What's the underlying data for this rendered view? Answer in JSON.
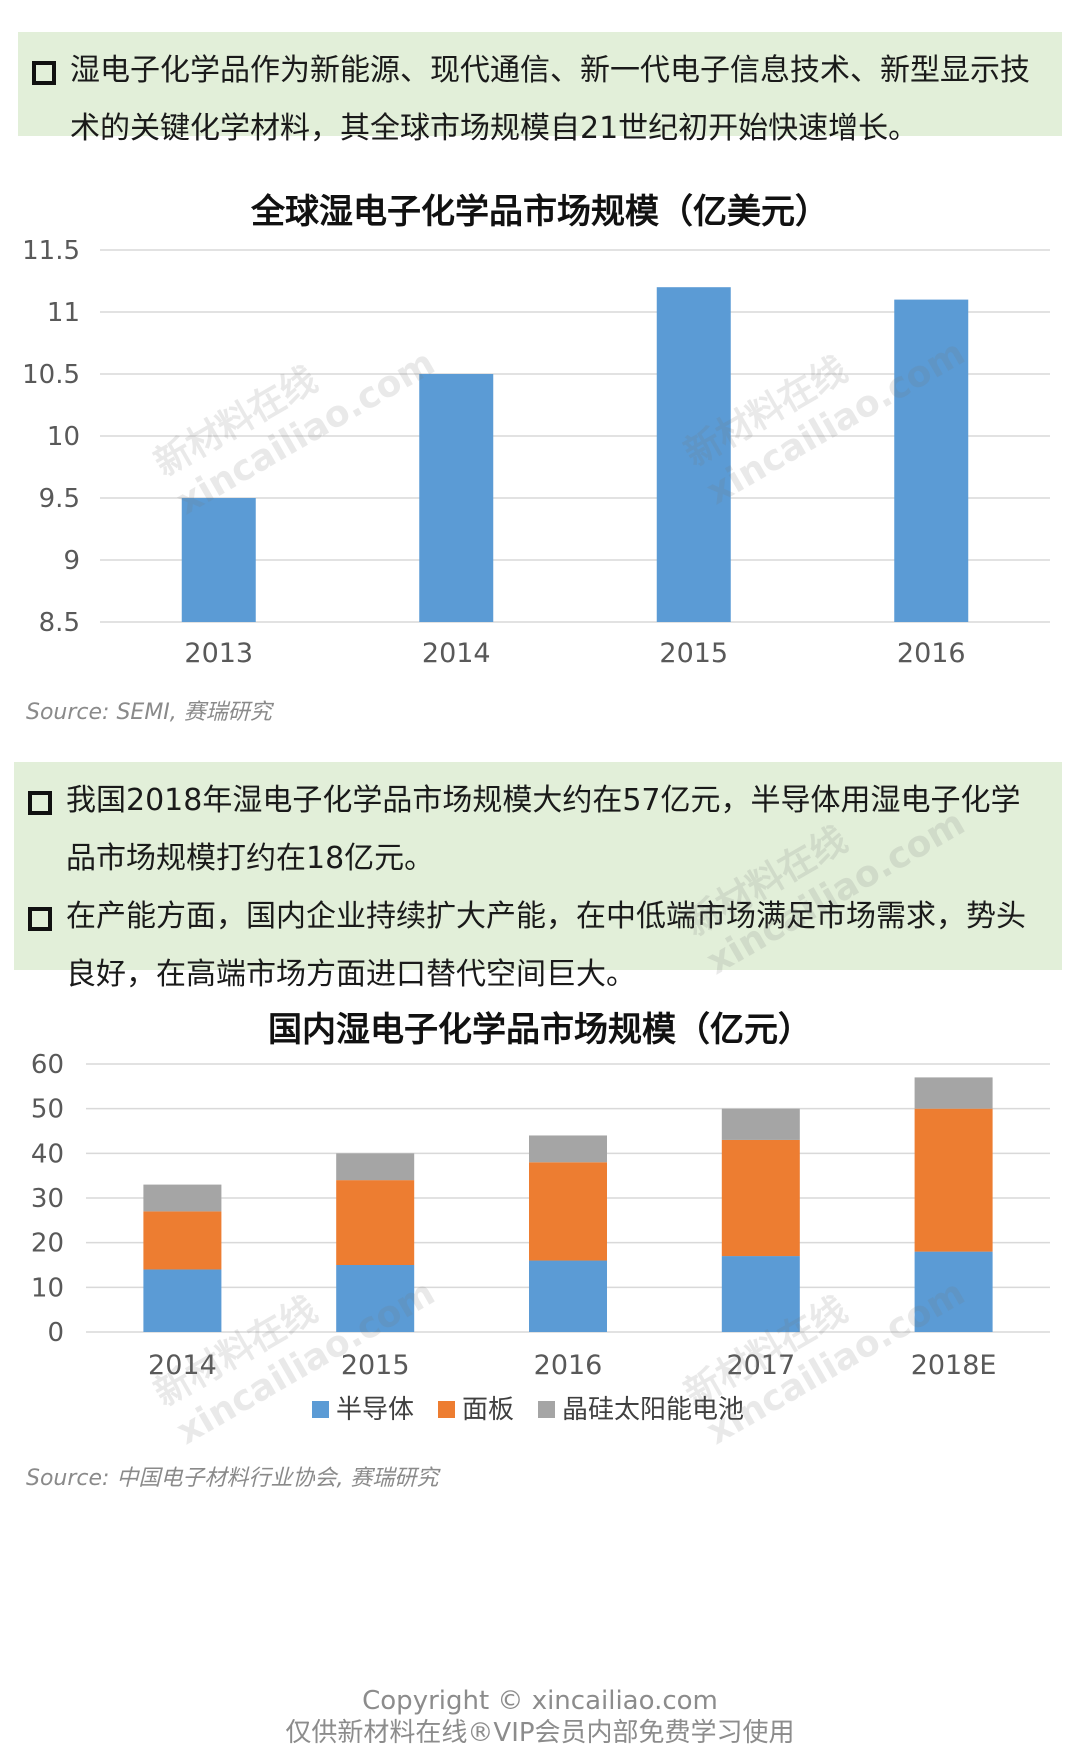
{
  "notes_top": [
    "湿电子化学品作为新能源、现代通信、新一代电子信息技术、新型显示技术的关键化学材料，其全球市场规模自21世纪初开始快速增长。"
  ],
  "notes_middle": [
    "我国2018年湿电子化学品市场规模大约在57亿元，半导体用湿电子化学品市场规模打约在18亿元。",
    "在产能方面，国内企业持续扩大产能，在中低端市场满足市场需求，势头良好，在高端市场方面进口替代空间巨大。"
  ],
  "chart_data": [
    {
      "type": "bar",
      "title": "全球湿电子化学品市场规模（亿美元）",
      "categories": [
        "2013",
        "2014",
        "2015",
        "2016"
      ],
      "values": [
        9.5,
        10.5,
        11.2,
        11.1
      ],
      "ylim": [
        8.5,
        11.5
      ],
      "yticks": [
        8.5,
        9,
        9.5,
        10,
        10.5,
        11,
        11.5
      ],
      "ytick_labels": [
        "8.5",
        "9",
        "9.5",
        "10",
        "10.5",
        "11",
        "11.5"
      ],
      "grid": true,
      "color": "#5b9bd5",
      "source": "Source:  SEMI,  赛瑞研究"
    },
    {
      "type": "bar",
      "stacked": true,
      "title": "国内湿电子化学品市场规模（亿元）",
      "categories": [
        "2014",
        "2015",
        "2016",
        "2017",
        "2018E"
      ],
      "series": [
        {
          "name": "半导体",
          "values": [
            14,
            15,
            16,
            17,
            18
          ],
          "color": "#5b9bd5"
        },
        {
          "name": "面板",
          "values": [
            13,
            19,
            22,
            26,
            32
          ],
          "color": "#ed7d31"
        },
        {
          "name": "晶硅太阳能电池",
          "values": [
            6,
            6,
            6,
            7,
            7
          ],
          "color": "#a5a5a5"
        }
      ],
      "ylim": [
        0,
        60
      ],
      "yticks": [
        0,
        10,
        20,
        30,
        40,
        50,
        60
      ],
      "ytick_labels": [
        "0",
        "10",
        "20",
        "30",
        "40",
        "50",
        "60"
      ],
      "grid": true,
      "legend": "bottom",
      "source": "Source:  中国电子材料行业协会,  赛瑞研究"
    }
  ],
  "watermark": {
    "line1": "新材料在线",
    "line2": "xincailiao.com"
  },
  "footer": {
    "copyright": "Copyright © xincailiao.com",
    "usage": "仅供新材料在线®VIP会员内部免费学习使用"
  }
}
